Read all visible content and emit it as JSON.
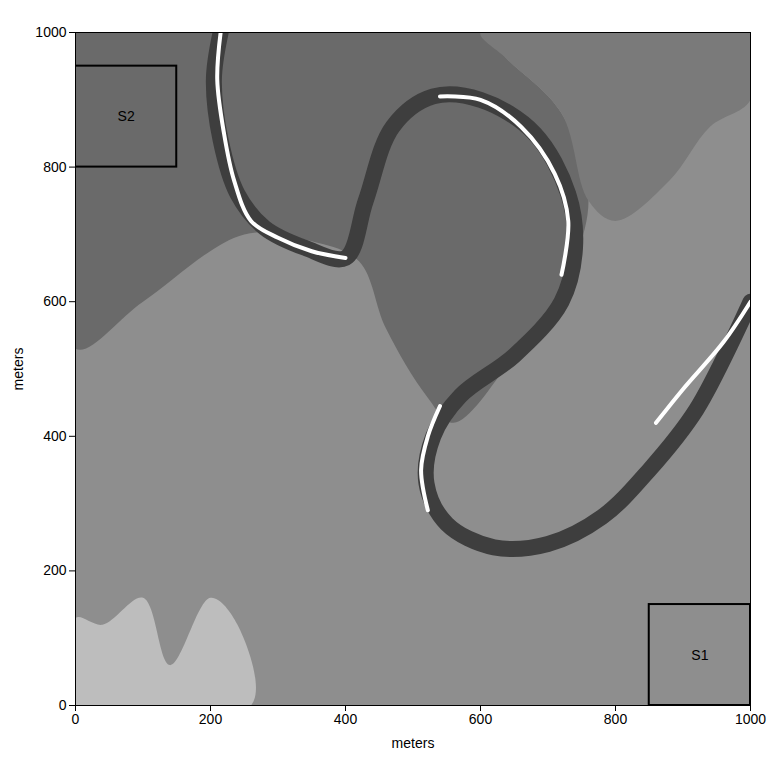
{
  "chart_data": {
    "type": "map",
    "xlabel": "meters",
    "ylabel": "meters",
    "xlim": [
      0,
      1000
    ],
    "ylim": [
      0,
      1000
    ],
    "xticks": [
      0,
      200,
      400,
      600,
      800,
      1000
    ],
    "yticks": [
      0,
      200,
      400,
      600,
      800,
      1000
    ],
    "background": "#8e8e8e",
    "areas": [
      {
        "color": "#6a6a6a",
        "points": [
          [
            0,
            1000
          ],
          [
            0,
            530
          ],
          [
            100,
            600
          ],
          [
            250,
            700
          ],
          [
            350,
            690
          ],
          [
            420,
            660
          ],
          [
            460,
            560
          ],
          [
            520,
            460
          ],
          [
            560,
            420
          ],
          [
            650,
            520
          ],
          [
            720,
            620
          ],
          [
            760,
            750
          ],
          [
            720,
            880
          ],
          [
            640,
            960
          ],
          [
            600,
            1000
          ]
        ]
      },
      {
        "color": "#7a7a7a",
        "points": [
          [
            600,
            1000
          ],
          [
            640,
            960
          ],
          [
            720,
            880
          ],
          [
            760,
            750
          ],
          [
            800,
            720
          ],
          [
            880,
            780
          ],
          [
            940,
            860
          ],
          [
            1000,
            900
          ],
          [
            1000,
            1000
          ]
        ]
      },
      {
        "color": "#bdbdbd",
        "points": [
          [
            0,
            0
          ],
          [
            0,
            130
          ],
          [
            40,
            120
          ],
          [
            100,
            160
          ],
          [
            140,
            60
          ],
          [
            200,
            160
          ],
          [
            240,
            120
          ],
          [
            260,
            0
          ]
        ]
      }
    ],
    "lines": [
      {
        "color": "#3e3e3e",
        "points": [
          [
            215,
            1000
          ],
          [
            205,
            930
          ],
          [
            215,
            840
          ],
          [
            240,
            760
          ],
          [
            280,
            710
          ],
          [
            340,
            680
          ],
          [
            400,
            665
          ],
          [
            430,
            750
          ],
          [
            470,
            860
          ],
          [
            530,
            905
          ],
          [
            600,
            900
          ],
          [
            680,
            850
          ],
          [
            730,
            760
          ],
          [
            740,
            680
          ],
          [
            720,
            600
          ],
          [
            650,
            520
          ],
          [
            570,
            460
          ],
          [
            530,
            400
          ],
          [
            520,
            330
          ],
          [
            550,
            270
          ],
          [
            620,
            235
          ],
          [
            700,
            240
          ],
          [
            780,
            280
          ],
          [
            850,
            350
          ],
          [
            920,
            440
          ],
          [
            1000,
            600
          ]
        ]
      },
      {
        "color": "#ffffff",
        "points": [
          [
            215,
            1000
          ],
          [
            210,
            930
          ],
          [
            220,
            850
          ],
          [
            235,
            780
          ],
          [
            260,
            720
          ],
          [
            300,
            695
          ],
          [
            350,
            675
          ],
          [
            400,
            665
          ]
        ]
      },
      {
        "color": "#ffffff",
        "points": [
          [
            540,
            905
          ],
          [
            600,
            900
          ],
          [
            660,
            860
          ],
          [
            710,
            790
          ],
          [
            730,
            720
          ],
          [
            720,
            640
          ]
        ]
      },
      {
        "color": "#ffffff",
        "points": [
          [
            540,
            445
          ],
          [
            522,
            400
          ],
          [
            512,
            350
          ],
          [
            522,
            290
          ]
        ]
      },
      {
        "color": "#ffffff",
        "points": [
          [
            860,
            420
          ],
          [
            900,
            470
          ],
          [
            960,
            540
          ],
          [
            1000,
            600
          ]
        ]
      }
    ],
    "regions": [
      {
        "label": "S1",
        "x": [
          850,
          1000
        ],
        "y": [
          0,
          150
        ]
      },
      {
        "label": "S2",
        "x": [
          0,
          150
        ],
        "y": [
          800,
          950
        ]
      }
    ]
  }
}
